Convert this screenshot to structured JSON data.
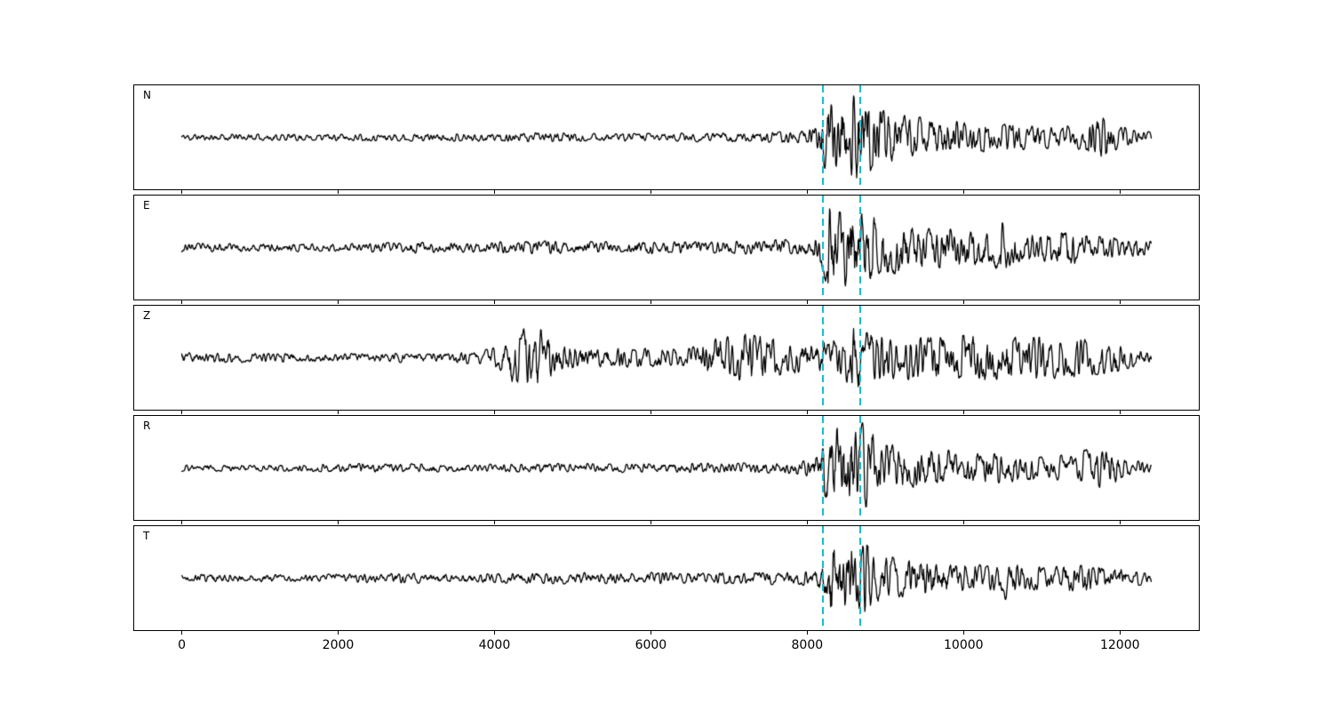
{
  "figure": {
    "background": "#ffffff",
    "panel_background": "#ffffff",
    "frame_color": "#000000"
  },
  "chart_data": {
    "type": "line",
    "title": "",
    "xlabel": "",
    "ylabel": "",
    "grid": false,
    "legend": "none",
    "xlim": [
      -620,
      13020
    ],
    "x_data_range": [
      0,
      12400
    ],
    "xticks": [
      0,
      2000,
      4000,
      6000,
      8000,
      10000,
      12000
    ],
    "xtick_labels": [
      "0",
      "2000",
      "4000",
      "6000",
      "8000",
      "10000",
      "12000"
    ],
    "trace_color": "#000000",
    "amplitude_unit": "fraction of panel half-height",
    "pick_lines": [
      {
        "x": 8200,
        "color": "#17becf",
        "style": "dashed"
      },
      {
        "x": 8680,
        "color": "#17becf",
        "style": "dashed"
      }
    ],
    "panels": [
      {
        "label": "N",
        "seed": 11,
        "envelope": [
          [
            0,
            0.07
          ],
          [
            1500,
            0.07
          ],
          [
            2500,
            0.075
          ],
          [
            3500,
            0.08
          ],
          [
            4600,
            0.1
          ],
          [
            5400,
            0.08
          ],
          [
            6200,
            0.09
          ],
          [
            7000,
            0.1
          ],
          [
            7600,
            0.11
          ],
          [
            7950,
            0.14
          ],
          [
            8120,
            0.22
          ],
          [
            8200,
            0.55
          ],
          [
            8300,
            0.95
          ],
          [
            8500,
            0.85
          ],
          [
            8680,
            0.97
          ],
          [
            8850,
            0.72
          ],
          [
            9100,
            0.5
          ],
          [
            9500,
            0.4
          ],
          [
            10000,
            0.34
          ],
          [
            10500,
            0.3
          ],
          [
            11000,
            0.24
          ],
          [
            11400,
            0.26
          ],
          [
            11750,
            0.48
          ],
          [
            12000,
            0.25
          ],
          [
            12200,
            0.14
          ],
          [
            12400,
            0.12
          ]
        ]
      },
      {
        "label": "E",
        "seed": 23,
        "envelope": [
          [
            0,
            0.09
          ],
          [
            1200,
            0.085
          ],
          [
            2200,
            0.09
          ],
          [
            3000,
            0.12
          ],
          [
            3600,
            0.1
          ],
          [
            4200,
            0.13
          ],
          [
            4800,
            0.14
          ],
          [
            5400,
            0.12
          ],
          [
            6000,
            0.14
          ],
          [
            6600,
            0.12
          ],
          [
            7200,
            0.14
          ],
          [
            7600,
            0.17
          ],
          [
            8000,
            0.16
          ],
          [
            8150,
            0.3
          ],
          [
            8250,
            0.95
          ],
          [
            8450,
            0.8
          ],
          [
            8680,
            0.92
          ],
          [
            8900,
            0.65
          ],
          [
            9200,
            0.52
          ],
          [
            9600,
            0.45
          ],
          [
            10000,
            0.4
          ],
          [
            10350,
            0.35
          ],
          [
            10500,
            0.62
          ],
          [
            10650,
            0.32
          ],
          [
            11000,
            0.3
          ],
          [
            11300,
            0.42
          ],
          [
            11600,
            0.26
          ],
          [
            12000,
            0.22
          ],
          [
            12400,
            0.16
          ]
        ]
      },
      {
        "label": "Z",
        "seed": 37,
        "envelope": [
          [
            0,
            0.11
          ],
          [
            800,
            0.1
          ],
          [
            1600,
            0.09
          ],
          [
            2400,
            0.09
          ],
          [
            3200,
            0.1
          ],
          [
            3800,
            0.13
          ],
          [
            4050,
            0.25
          ],
          [
            4250,
            0.55
          ],
          [
            4450,
            0.8
          ],
          [
            4650,
            0.55
          ],
          [
            4850,
            0.28
          ],
          [
            5200,
            0.22
          ],
          [
            5700,
            0.21
          ],
          [
            6200,
            0.2
          ],
          [
            6600,
            0.24
          ],
          [
            6900,
            0.48
          ],
          [
            7150,
            0.58
          ],
          [
            7400,
            0.52
          ],
          [
            7700,
            0.4
          ],
          [
            8000,
            0.34
          ],
          [
            8200,
            0.4
          ],
          [
            8450,
            0.42
          ],
          [
            8620,
            0.95
          ],
          [
            8750,
            0.55
          ],
          [
            9000,
            0.48
          ],
          [
            9400,
            0.52
          ],
          [
            9800,
            0.46
          ],
          [
            10200,
            0.5
          ],
          [
            10600,
            0.52
          ],
          [
            11000,
            0.46
          ],
          [
            11400,
            0.42
          ],
          [
            11800,
            0.36
          ],
          [
            12100,
            0.24
          ],
          [
            12400,
            0.12
          ]
        ]
      },
      {
        "label": "R",
        "seed": 51,
        "envelope": [
          [
            0,
            0.07
          ],
          [
            1500,
            0.07
          ],
          [
            2600,
            0.1
          ],
          [
            3500,
            0.08
          ],
          [
            4500,
            0.09
          ],
          [
            5500,
            0.09
          ],
          [
            6300,
            0.1
          ],
          [
            7100,
            0.11
          ],
          [
            7700,
            0.12
          ],
          [
            7950,
            0.15
          ],
          [
            8120,
            0.25
          ],
          [
            8220,
            0.6
          ],
          [
            8320,
            0.97
          ],
          [
            8520,
            0.88
          ],
          [
            8700,
            0.95
          ],
          [
            8900,
            0.68
          ],
          [
            9200,
            0.48
          ],
          [
            9600,
            0.4
          ],
          [
            10100,
            0.35
          ],
          [
            10600,
            0.3
          ],
          [
            11000,
            0.25
          ],
          [
            11400,
            0.28
          ],
          [
            11700,
            0.46
          ],
          [
            12000,
            0.28
          ],
          [
            12200,
            0.15
          ],
          [
            12400,
            0.12
          ]
        ]
      },
      {
        "label": "T",
        "seed": 67,
        "envelope": [
          [
            0,
            0.08
          ],
          [
            1200,
            0.08
          ],
          [
            2200,
            0.09
          ],
          [
            3000,
            0.11
          ],
          [
            3700,
            0.095
          ],
          [
            4400,
            0.11
          ],
          [
            5000,
            0.12
          ],
          [
            5600,
            0.11
          ],
          [
            6200,
            0.12
          ],
          [
            6800,
            0.11
          ],
          [
            7400,
            0.13
          ],
          [
            7800,
            0.14
          ],
          [
            8050,
            0.16
          ],
          [
            8180,
            0.4
          ],
          [
            8300,
            0.95
          ],
          [
            8500,
            0.82
          ],
          [
            8680,
            0.9
          ],
          [
            8900,
            0.55
          ],
          [
            9200,
            0.42
          ],
          [
            9600,
            0.36
          ],
          [
            10000,
            0.3
          ],
          [
            10400,
            0.28
          ],
          [
            10550,
            0.5
          ],
          [
            10700,
            0.28
          ],
          [
            11100,
            0.26
          ],
          [
            11400,
            0.3
          ],
          [
            11800,
            0.26
          ],
          [
            12100,
            0.17
          ],
          [
            12400,
            0.13
          ]
        ]
      }
    ]
  }
}
